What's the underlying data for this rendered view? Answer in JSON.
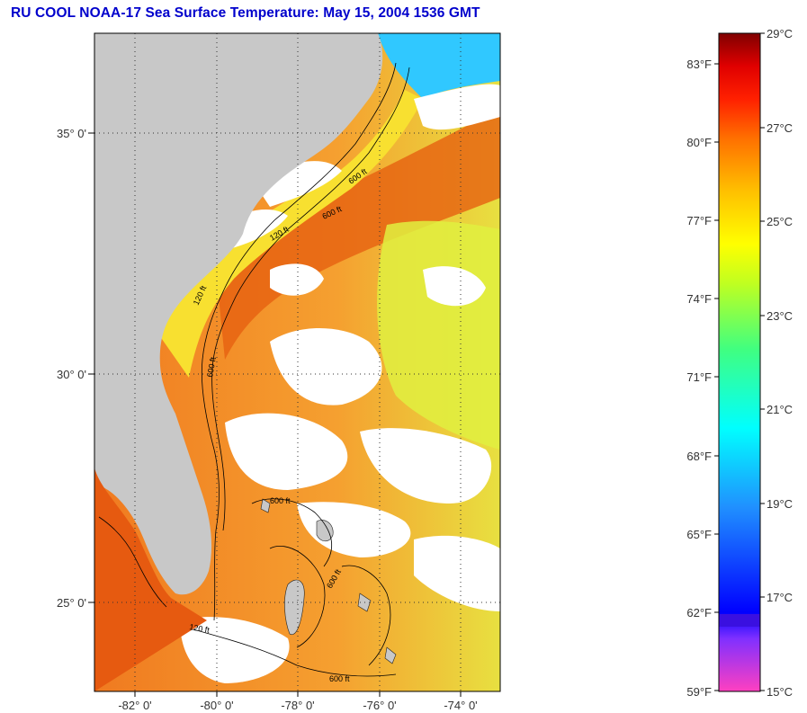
{
  "title": "RU COOL  NOAA-17  Sea Surface Temperature:  May 15, 2004 1536 GMT",
  "map": {
    "lat_labels": [
      "35° 0'",
      "30° 0'",
      "25° 0'"
    ],
    "lon_labels": [
      "-82° 0'",
      "-80° 0'",
      "-78° 0'",
      "-76° 0'",
      "-74° 0'"
    ],
    "contour_labels": [
      "600 ft",
      "120 ft",
      "600 ft",
      "120 ft",
      "600 ft",
      "600 ft",
      "600 ft",
      "120 ft",
      "600 ft"
    ],
    "colors": {
      "land": "#c8c8c8",
      "cloud": "#ffffff",
      "warm": "#f08020",
      "gulf": "#e65a10",
      "shelf": "#f8e030",
      "cool": "#20d0ff"
    }
  },
  "colorbar": {
    "fahrenheit_labels": [
      "83°F",
      "80°F",
      "77°F",
      "74°F",
      "71°F",
      "68°F",
      "65°F",
      "62°F",
      "59°F"
    ],
    "celsius_labels": [
      "29°C",
      "27°C",
      "25°C",
      "23°C",
      "21°C",
      "19°C",
      "17°C",
      "15°C"
    ],
    "range_celsius": [
      15,
      29
    ]
  }
}
